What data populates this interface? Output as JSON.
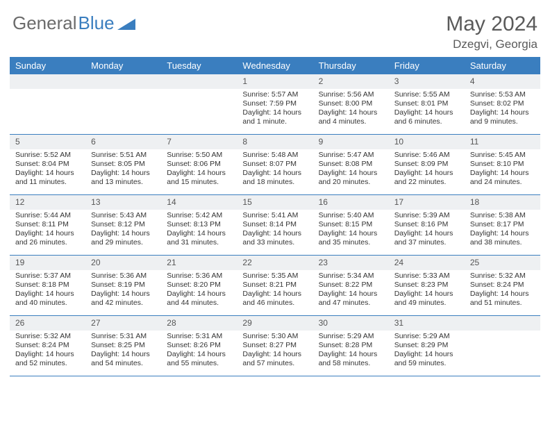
{
  "colors": {
    "header_bg": "#3a7ebf",
    "header_text": "#ffffff",
    "daynum_bg": "#eef0f2",
    "border": "#3a7ebf",
    "logo_gray": "#6b6b6b",
    "logo_blue": "#3a7ebf",
    "text": "#333333",
    "title": "#5a5a5a"
  },
  "logo": {
    "part1": "General",
    "part2": "Blue"
  },
  "title": "May 2024",
  "location": "Dzegvi, Georgia",
  "day_headers": [
    "Sunday",
    "Monday",
    "Tuesday",
    "Wednesday",
    "Thursday",
    "Friday",
    "Saturday"
  ],
  "weeks": [
    [
      {
        "num": "",
        "sunrise": "",
        "sunset": "",
        "daylight": ""
      },
      {
        "num": "",
        "sunrise": "",
        "sunset": "",
        "daylight": ""
      },
      {
        "num": "",
        "sunrise": "",
        "sunset": "",
        "daylight": ""
      },
      {
        "num": "1",
        "sunrise": "Sunrise: 5:57 AM",
        "sunset": "Sunset: 7:59 PM",
        "daylight": "Daylight: 14 hours and 1 minute."
      },
      {
        "num": "2",
        "sunrise": "Sunrise: 5:56 AM",
        "sunset": "Sunset: 8:00 PM",
        "daylight": "Daylight: 14 hours and 4 minutes."
      },
      {
        "num": "3",
        "sunrise": "Sunrise: 5:55 AM",
        "sunset": "Sunset: 8:01 PM",
        "daylight": "Daylight: 14 hours and 6 minutes."
      },
      {
        "num": "4",
        "sunrise": "Sunrise: 5:53 AM",
        "sunset": "Sunset: 8:02 PM",
        "daylight": "Daylight: 14 hours and 9 minutes."
      }
    ],
    [
      {
        "num": "5",
        "sunrise": "Sunrise: 5:52 AM",
        "sunset": "Sunset: 8:04 PM",
        "daylight": "Daylight: 14 hours and 11 minutes."
      },
      {
        "num": "6",
        "sunrise": "Sunrise: 5:51 AM",
        "sunset": "Sunset: 8:05 PM",
        "daylight": "Daylight: 14 hours and 13 minutes."
      },
      {
        "num": "7",
        "sunrise": "Sunrise: 5:50 AM",
        "sunset": "Sunset: 8:06 PM",
        "daylight": "Daylight: 14 hours and 15 minutes."
      },
      {
        "num": "8",
        "sunrise": "Sunrise: 5:48 AM",
        "sunset": "Sunset: 8:07 PM",
        "daylight": "Daylight: 14 hours and 18 minutes."
      },
      {
        "num": "9",
        "sunrise": "Sunrise: 5:47 AM",
        "sunset": "Sunset: 8:08 PM",
        "daylight": "Daylight: 14 hours and 20 minutes."
      },
      {
        "num": "10",
        "sunrise": "Sunrise: 5:46 AM",
        "sunset": "Sunset: 8:09 PM",
        "daylight": "Daylight: 14 hours and 22 minutes."
      },
      {
        "num": "11",
        "sunrise": "Sunrise: 5:45 AM",
        "sunset": "Sunset: 8:10 PM",
        "daylight": "Daylight: 14 hours and 24 minutes."
      }
    ],
    [
      {
        "num": "12",
        "sunrise": "Sunrise: 5:44 AM",
        "sunset": "Sunset: 8:11 PM",
        "daylight": "Daylight: 14 hours and 26 minutes."
      },
      {
        "num": "13",
        "sunrise": "Sunrise: 5:43 AM",
        "sunset": "Sunset: 8:12 PM",
        "daylight": "Daylight: 14 hours and 29 minutes."
      },
      {
        "num": "14",
        "sunrise": "Sunrise: 5:42 AM",
        "sunset": "Sunset: 8:13 PM",
        "daylight": "Daylight: 14 hours and 31 minutes."
      },
      {
        "num": "15",
        "sunrise": "Sunrise: 5:41 AM",
        "sunset": "Sunset: 8:14 PM",
        "daylight": "Daylight: 14 hours and 33 minutes."
      },
      {
        "num": "16",
        "sunrise": "Sunrise: 5:40 AM",
        "sunset": "Sunset: 8:15 PM",
        "daylight": "Daylight: 14 hours and 35 minutes."
      },
      {
        "num": "17",
        "sunrise": "Sunrise: 5:39 AM",
        "sunset": "Sunset: 8:16 PM",
        "daylight": "Daylight: 14 hours and 37 minutes."
      },
      {
        "num": "18",
        "sunrise": "Sunrise: 5:38 AM",
        "sunset": "Sunset: 8:17 PM",
        "daylight": "Daylight: 14 hours and 38 minutes."
      }
    ],
    [
      {
        "num": "19",
        "sunrise": "Sunrise: 5:37 AM",
        "sunset": "Sunset: 8:18 PM",
        "daylight": "Daylight: 14 hours and 40 minutes."
      },
      {
        "num": "20",
        "sunrise": "Sunrise: 5:36 AM",
        "sunset": "Sunset: 8:19 PM",
        "daylight": "Daylight: 14 hours and 42 minutes."
      },
      {
        "num": "21",
        "sunrise": "Sunrise: 5:36 AM",
        "sunset": "Sunset: 8:20 PM",
        "daylight": "Daylight: 14 hours and 44 minutes."
      },
      {
        "num": "22",
        "sunrise": "Sunrise: 5:35 AM",
        "sunset": "Sunset: 8:21 PM",
        "daylight": "Daylight: 14 hours and 46 minutes."
      },
      {
        "num": "23",
        "sunrise": "Sunrise: 5:34 AM",
        "sunset": "Sunset: 8:22 PM",
        "daylight": "Daylight: 14 hours and 47 minutes."
      },
      {
        "num": "24",
        "sunrise": "Sunrise: 5:33 AM",
        "sunset": "Sunset: 8:23 PM",
        "daylight": "Daylight: 14 hours and 49 minutes."
      },
      {
        "num": "25",
        "sunrise": "Sunrise: 5:32 AM",
        "sunset": "Sunset: 8:24 PM",
        "daylight": "Daylight: 14 hours and 51 minutes."
      }
    ],
    [
      {
        "num": "26",
        "sunrise": "Sunrise: 5:32 AM",
        "sunset": "Sunset: 8:24 PM",
        "daylight": "Daylight: 14 hours and 52 minutes."
      },
      {
        "num": "27",
        "sunrise": "Sunrise: 5:31 AM",
        "sunset": "Sunset: 8:25 PM",
        "daylight": "Daylight: 14 hours and 54 minutes."
      },
      {
        "num": "28",
        "sunrise": "Sunrise: 5:31 AM",
        "sunset": "Sunset: 8:26 PM",
        "daylight": "Daylight: 14 hours and 55 minutes."
      },
      {
        "num": "29",
        "sunrise": "Sunrise: 5:30 AM",
        "sunset": "Sunset: 8:27 PM",
        "daylight": "Daylight: 14 hours and 57 minutes."
      },
      {
        "num": "30",
        "sunrise": "Sunrise: 5:29 AM",
        "sunset": "Sunset: 8:28 PM",
        "daylight": "Daylight: 14 hours and 58 minutes."
      },
      {
        "num": "31",
        "sunrise": "Sunrise: 5:29 AM",
        "sunset": "Sunset: 8:29 PM",
        "daylight": "Daylight: 14 hours and 59 minutes."
      },
      {
        "num": "",
        "sunrise": "",
        "sunset": "",
        "daylight": ""
      }
    ]
  ]
}
